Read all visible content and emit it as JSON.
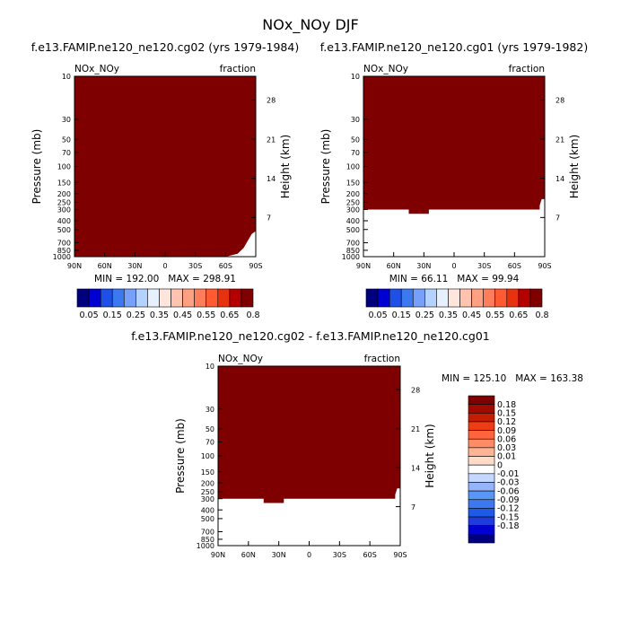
{
  "title": "NOx_NOy DJF",
  "colors": {
    "fill": "#7f0000",
    "axis": "#000000",
    "background": "#ffffff",
    "top_colorbar": [
      "#00007f",
      "#0000d2",
      "#1e4fe6",
      "#3c78f0",
      "#78a0fa",
      "#b4d2ff",
      "#e6f0ff",
      "#ffe6dc",
      "#ffc3af",
      "#ffa082",
      "#ff7d5a",
      "#ff5a32",
      "#e6320f",
      "#b40000",
      "#7f0000"
    ],
    "diff_colorbar": [
      "#00007f",
      "#0000d2",
      "#1e3cdc",
      "#1e5ae6",
      "#3c78f0",
      "#5a96f5",
      "#96b4fa",
      "#c3d7ff",
      "#ffffff",
      "#ffdcc8",
      "#ffb496",
      "#ff8c64",
      "#ff643c",
      "#f03c14",
      "#c31e00",
      "#a00a00",
      "#7f0000"
    ]
  },
  "chart_data": [
    {
      "type": "heatmap",
      "panel": "top-left",
      "title": "f.e13.FAMIP.ne120_ne120.cg02 (yrs 1979-1984)",
      "left_label": "NOx_NOy",
      "right_label": "fraction",
      "ylabel": "Pressure (mb)",
      "ylabel_right": "Height (km)",
      "x_ticks": [
        "90N",
        "60N",
        "30N",
        "0",
        "30S",
        "60S",
        "90S"
      ],
      "x_range": [
        90,
        -90
      ],
      "y_ticks": [
        "10",
        "30",
        "50",
        "70",
        "100",
        "150",
        "200",
        "250",
        "300",
        "400",
        "500",
        "700",
        "850",
        "1000"
      ],
      "y_ticks_right": [
        "28",
        "21",
        "14",
        "7"
      ],
      "y_range_mb": [
        10,
        1000
      ],
      "stats_label": "MIN = 192.00   MAX = 298.91",
      "min": 192.0,
      "max": 298.91,
      "filled_down_to_mb": [
        [
          90,
          1000
        ],
        [
          -60,
          1000
        ],
        [
          -72,
          930
        ],
        [
          -78,
          800
        ],
        [
          -81,
          700
        ],
        [
          -86,
          560
        ],
        [
          -90,
          520
        ]
      ]
    },
    {
      "type": "heatmap",
      "panel": "top-right",
      "title": "f.e13.FAMIP.ne120_ne120.cg01 (yrs 1979-1982)",
      "left_label": "NOx_NOy",
      "right_label": "fraction",
      "ylabel": "Pressure (mb)",
      "ylabel_right": "Height (km)",
      "x_ticks": [
        "90N",
        "60N",
        "30N",
        "0",
        "30S",
        "60S",
        "90S"
      ],
      "x_range": [
        90,
        -90
      ],
      "y_ticks": [
        "10",
        "30",
        "50",
        "70",
        "100",
        "150",
        "200",
        "250",
        "300",
        "400",
        "500",
        "700",
        "850",
        "1000"
      ],
      "y_ticks_right": [
        "28",
        "21",
        "14",
        "7"
      ],
      "y_range_mb": [
        10,
        1000
      ],
      "stats_label": "MIN = 66.11   MAX = 99.94",
      "min": 66.11,
      "max": 99.94,
      "filled_down_to_mb": [
        [
          90,
          300
        ],
        [
          45,
          300
        ],
        [
          45,
          335
        ],
        [
          25,
          335
        ],
        [
          25,
          300
        ],
        [
          -85,
          300
        ],
        [
          -85,
          270
        ],
        [
          -87,
          230
        ],
        [
          -90,
          230
        ]
      ]
    },
    {
      "type": "heatmap",
      "panel": "bottom",
      "title": "f.e13.FAMIP.ne120_ne120.cg02 - f.e13.FAMIP.ne120_ne120.cg01",
      "left_label": "NOx_NOy",
      "right_label": "fraction",
      "ylabel": "Pressure (mb)",
      "ylabel_right": "Height (km)",
      "x_ticks": [
        "90N",
        "60N",
        "30N",
        "0",
        "30S",
        "60S",
        "90S"
      ],
      "x_range": [
        90,
        -90
      ],
      "y_ticks": [
        "10",
        "30",
        "50",
        "70",
        "100",
        "150",
        "200",
        "250",
        "300",
        "400",
        "500",
        "700",
        "850",
        "1000"
      ],
      "y_ticks_right": [
        "28",
        "21",
        "14",
        "7"
      ],
      "y_range_mb": [
        10,
        1000
      ],
      "stats_label": "MIN = 125.10   MAX = 163.38",
      "min": 125.1,
      "max": 163.38,
      "filled_down_to_mb": [
        [
          90,
          300
        ],
        [
          45,
          300
        ],
        [
          45,
          335
        ],
        [
          25,
          335
        ],
        [
          25,
          300
        ],
        [
          -85,
          300
        ],
        [
          -85,
          270
        ],
        [
          -87,
          230
        ],
        [
          -90,
          230
        ]
      ]
    }
  ],
  "colorbars": {
    "top_labels": [
      "0.05",
      "0.15",
      "0.25",
      "0.35",
      "0.45",
      "0.55",
      "0.65",
      "0.8"
    ],
    "diff_labels": [
      "0.18",
      "0.15",
      "0.12",
      "0.09",
      "0.06",
      "0.03",
      "0.01",
      "0",
      "-0.01",
      "-0.03",
      "-0.06",
      "-0.09",
      "-0.12",
      "-0.15",
      "-0.18"
    ]
  }
}
